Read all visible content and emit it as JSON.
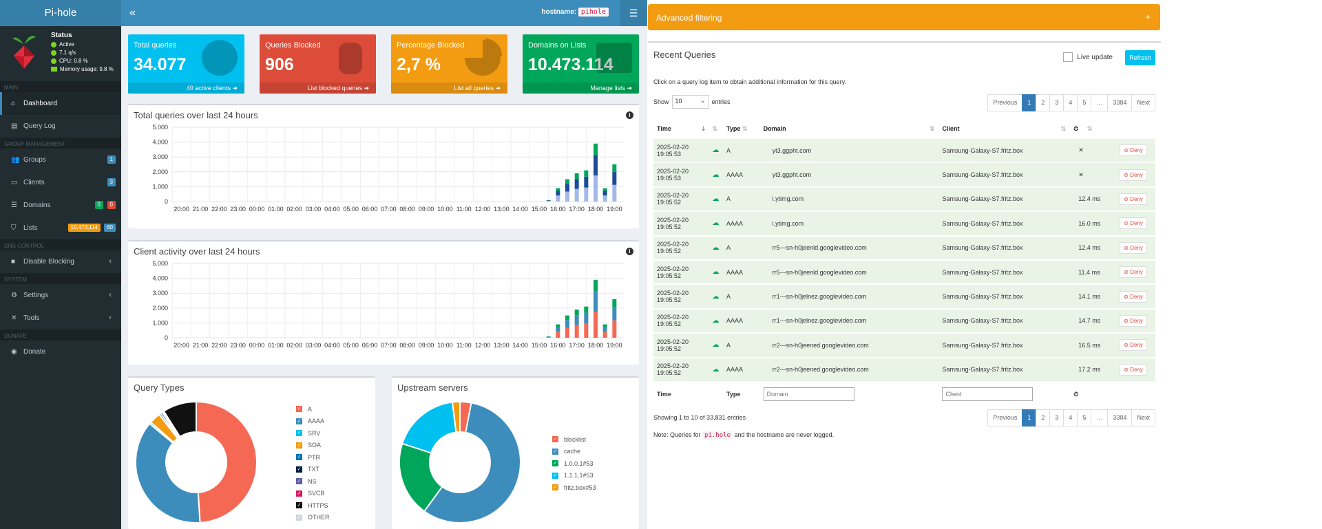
{
  "app": {
    "brand": "Pi-hole",
    "hostname_label": "hostname:",
    "hostname_value": "pihole"
  },
  "status": {
    "title": "Status",
    "items": [
      "Active",
      "7,1 q/s",
      "CPU: 0.8 %",
      "Memory usage: 9.8 %"
    ]
  },
  "sidebar": {
    "main_header": "MAIN",
    "dashboard": "Dashboard",
    "query_log": "Query Log",
    "group_header": "GROUP MANAGEMENT",
    "groups": "Groups",
    "groups_badge": "1",
    "clients": "Clients",
    "clients_badge": "3",
    "domains": "Domains",
    "domains_badge_a": "0",
    "domains_badge_b": "0",
    "lists": "Lists",
    "lists_badge_a": "10,473,114",
    "lists_badge_b": "60",
    "dns_header": "DNS CONTROL",
    "disable_blocking": "Disable Blocking",
    "system_header": "SYSTEM",
    "settings": "Settings",
    "tools": "Tools",
    "donate_header": "DONATE",
    "donate": "Donate"
  },
  "stats": [
    {
      "label": "Total queries",
      "value": "34.077",
      "footer": "40 active clients",
      "color": "#00c0ef"
    },
    {
      "label": "Queries Blocked",
      "value": "906",
      "footer": "List blocked queries",
      "color": "#dd4b39"
    },
    {
      "label": "Percentage Blocked",
      "value": "2,7 %",
      "footer": "List all queries",
      "color": "#f39c12"
    },
    {
      "label": "Domains on Lists",
      "value": "10.473.114",
      "footer": "Manage lists",
      "color": "#00a65a"
    }
  ],
  "charts": {
    "total_title": "Total queries over last 24 hours",
    "client_title": "Client activity over last 24 hours",
    "y_ticks": [
      "5.000",
      "4.000",
      "3.000",
      "2.000",
      "1.000",
      "0"
    ],
    "x_ticks": [
      "20:00",
      "21:00",
      "22:00",
      "23:00",
      "00:00",
      "01:00",
      "02:00",
      "03:00",
      "04:00",
      "05:00",
      "06:00",
      "07:00",
      "08:00",
      "09:00",
      "10:00",
      "11:00",
      "12:00",
      "13:00",
      "14:00",
      "15:00",
      "16:00",
      "17:00",
      "18:00",
      "19:00"
    ],
    "query_types_title": "Query Types",
    "upstream_title": "Upstream servers"
  },
  "chart_data": [
    {
      "type": "bar",
      "title": "Total queries over last 24 hours",
      "ylim": [
        0,
        5000
      ],
      "x": [
        "15:00",
        "15:30",
        "16:00",
        "16:30",
        "17:00",
        "17:30",
        "18:00",
        "18:30",
        "19:00"
      ],
      "series": [
        {
          "values": [
            0,
            100,
            900,
            1500,
            1900,
            2100,
            3900,
            900,
            2500
          ]
        }
      ]
    },
    {
      "type": "bar",
      "title": "Client activity over last 24 hours",
      "ylim": [
        0,
        5000
      ],
      "x": [
        "15:00",
        "15:30",
        "16:00",
        "16:30",
        "17:00",
        "17:30",
        "18:00",
        "18:30",
        "19:00"
      ],
      "series": [
        {
          "values": [
            0,
            100,
            900,
            1500,
            1900,
            2100,
            3900,
            900,
            2600
          ]
        }
      ]
    },
    {
      "type": "pie",
      "title": "Query Types",
      "categories": [
        "A",
        "AAAA",
        "SRV",
        "SOA",
        "PTR",
        "TXT",
        "NS",
        "SVCB",
        "HTTPS",
        "OTHER"
      ],
      "values": [
        49,
        37,
        0.5,
        3,
        0.5,
        0.5,
        0.3,
        0.2,
        9,
        0
      ],
      "colors": [
        "#f56954",
        "#3c8dbc",
        "#00c0ef",
        "#f39c12",
        "#0073b7",
        "#001f3f",
        "#605ca8",
        "#d81b60",
        "#111111",
        "#d2d6de"
      ]
    },
    {
      "type": "pie",
      "title": "Upstream servers",
      "categories": [
        "blocklist",
        "cache",
        "1.0.0.1#53",
        "1.1.1.1#53",
        "fritz.box#53"
      ],
      "values": [
        3,
        57,
        20,
        18,
        2
      ],
      "colors": [
        "#f56954",
        "#3c8dbc",
        "#00a65a",
        "#00c0ef",
        "#f39c12"
      ]
    }
  ],
  "advanced": {
    "title": "Advanced filtering",
    "toggle": "+"
  },
  "recent": {
    "title": "Recent Queries",
    "live_update": "Live update",
    "refresh": "Refresh",
    "hint": "Click on a query log item to obtain additional information for this query.",
    "show_label": "Show",
    "show_value": "10",
    "entries_label": "entries",
    "pager": [
      "Previous",
      "1",
      "2",
      "3",
      "4",
      "5",
      "…",
      "3384",
      "Next"
    ],
    "headers": {
      "time": "Time",
      "type": "Type",
      "domain": "Domain",
      "client": "Client"
    },
    "rows": [
      {
        "time": "2025-02-20 19:05:53",
        "type": "A",
        "domain": "yt3.ggpht.com",
        "client": "Samsung-Galaxy-S7.fritz.box",
        "reply": "✕"
      },
      {
        "time": "2025-02-20 19:05:53",
        "type": "AAAA",
        "domain": "yt3.ggpht.com",
        "client": "Samsung-Galaxy-S7.fritz.box",
        "reply": "✕"
      },
      {
        "time": "2025-02-20 19:05:52",
        "type": "A",
        "domain": "i.ytimg.com",
        "client": "Samsung-Galaxy-S7.fritz.box",
        "reply": "12.4 ms"
      },
      {
        "time": "2025-02-20 19:05:52",
        "type": "AAAA",
        "domain": "i.ytimg.com",
        "client": "Samsung-Galaxy-S7.fritz.box",
        "reply": "16.0 ms"
      },
      {
        "time": "2025-02-20 19:05:52",
        "type": "A",
        "domain": "rr5---sn-h0jeenld.googlevideo.com",
        "client": "Samsung-Galaxy-S7.fritz.box",
        "reply": "12.4 ms"
      },
      {
        "time": "2025-02-20 19:05:52",
        "type": "AAAA",
        "domain": "rr5---sn-h0jeenld.googlevideo.com",
        "client": "Samsung-Galaxy-S7.fritz.box",
        "reply": "11.4 ms"
      },
      {
        "time": "2025-02-20 19:05:52",
        "type": "A",
        "domain": "rr1---sn-h0jelnez.googlevideo.com",
        "client": "Samsung-Galaxy-S7.fritz.box",
        "reply": "14.1 ms"
      },
      {
        "time": "2025-02-20 19:05:52",
        "type": "AAAA",
        "domain": "rr1---sn-h0jelnez.googlevideo.com",
        "client": "Samsung-Galaxy-S7.fritz.box",
        "reply": "14.7 ms"
      },
      {
        "time": "2025-02-20 19:05:52",
        "type": "A",
        "domain": "rr2---sn-h0jeened.googlevideo.com",
        "client": "Samsung-Galaxy-S7.fritz.box",
        "reply": "16.5 ms"
      },
      {
        "time": "2025-02-20 19:05:52",
        "type": "AAAA",
        "domain": "rr2---sn-h0jeened.googlevideo.com",
        "client": "Samsung-Galaxy-S7.fritz.box",
        "reply": "17.2 ms"
      }
    ],
    "deny_label": "Deny",
    "footer_domain_placeholder": "Domain",
    "footer_client_placeholder": "Client",
    "showing": "Showing 1 to 10 of 33,831 entries",
    "note_prefix": "Note: Queries for",
    "note_code": "pi.hole",
    "note_suffix": "and the hostname are never logged."
  }
}
